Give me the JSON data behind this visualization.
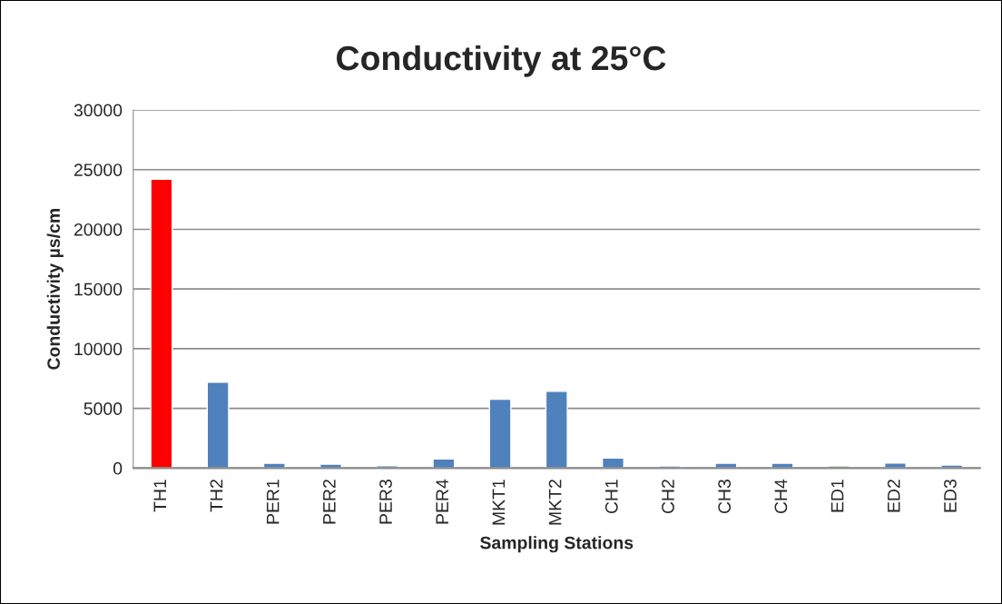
{
  "chart_data": {
    "type": "bar",
    "title": "Conductivity at 25°C",
    "xlabel": "Sampling Stations",
    "ylabel": "Conductivity µs/cm",
    "categories": [
      "TH1",
      "TH2",
      "PER1",
      "PER2",
      "PER3",
      "PER4",
      "MKT1",
      "MKT2",
      "CH1",
      "CH2",
      "CH3",
      "CH4",
      "ED1",
      "ED2",
      "ED3"
    ],
    "values": [
      24200,
      7200,
      410,
      330,
      200,
      770,
      5770,
      6430,
      840,
      180,
      410,
      410,
      180,
      430,
      260
    ],
    "colors": [
      "#ff0000",
      "#4f81bd",
      "#4f81bd",
      "#4f81bd",
      "#4f81bd",
      "#4f81bd",
      "#4f81bd",
      "#4f81bd",
      "#4f81bd",
      "#4f81bd",
      "#4f81bd",
      "#4f81bd",
      "#3f9a3a",
      "#4f81bd",
      "#4f81bd"
    ],
    "ylim": [
      0,
      30000
    ],
    "yticks": [
      0,
      5000,
      10000,
      15000,
      20000,
      25000,
      30000
    ],
    "grid": "y",
    "legend": false
  }
}
